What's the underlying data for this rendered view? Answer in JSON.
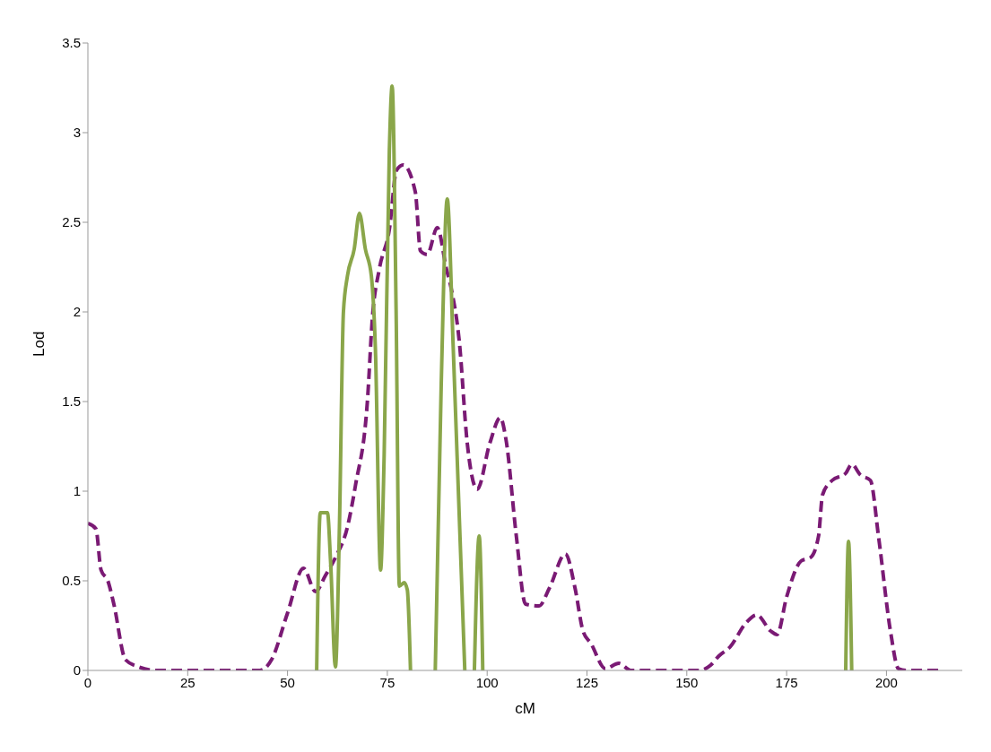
{
  "chart_data": {
    "type": "line",
    "xlabel": "cM",
    "ylabel": "Lod",
    "xlim": [
      0,
      219
    ],
    "xticks": [
      0,
      25,
      50,
      75,
      100,
      125,
      150,
      175,
      200
    ],
    "ylim": [
      0,
      3.5
    ],
    "yticks": [
      0,
      0.5,
      1,
      1.5,
      2,
      2.5,
      3,
      3.5
    ],
    "grid": false,
    "legend": false,
    "marker": "none",
    "series": [
      {
        "color": "#7a1a74",
        "line_style": "dashed",
        "x": [
          0,
          2,
          3.3,
          5,
          6.5,
          9.4,
          12.7,
          17,
          43,
          46,
          50,
          54,
          57,
          59.5,
          62,
          65,
          67,
          70,
          71.3,
          73,
          75.5,
          77.3,
          79,
          82,
          83.3,
          85,
          87.5,
          89.8,
          91,
          93,
          95,
          97.5,
          100.7,
          103.3,
          104.7,
          107.3,
          109.6,
          113,
          115.6,
          119.6,
          122,
          124,
          126,
          129.6,
          133,
          136,
          153,
          156,
          158,
          160.8,
          165,
          167.5,
          171,
          172.6,
          175,
          178.6,
          181,
          183,
          184,
          186.4,
          189.8,
          191.3,
          193.5,
          196,
          198,
          201,
          203,
          205.3,
          213
        ],
        "values": [
          0.82,
          0.79,
          0.56,
          0.5,
          0.37,
          0.06,
          0.02,
          0,
          0,
          0.06,
          0.32,
          0.57,
          0.44,
          0.53,
          0.63,
          0.8,
          1.03,
          1.5,
          1.98,
          2.24,
          2.46,
          2.79,
          2.82,
          2.67,
          2.34,
          2.32,
          2.47,
          2.24,
          2.13,
          1.84,
          1.27,
          1.01,
          1.27,
          1.41,
          1.29,
          0.75,
          0.37,
          0.36,
          0.46,
          0.65,
          0.46,
          0.22,
          0.15,
          0.01,
          0.04,
          0,
          0,
          0.03,
          0.08,
          0.13,
          0.27,
          0.31,
          0.22,
          0.2,
          0.41,
          0.61,
          0.63,
          0.75,
          0.98,
          1.06,
          1.1,
          1.15,
          1.09,
          1.06,
          0.75,
          0.22,
          0.01,
          0,
          0
        ]
      },
      {
        "color": "#8aa64a",
        "line_style": "solid",
        "x": [
          57.3,
          58.2,
          60,
          60.8,
          62,
          63,
          64,
          65,
          66.7,
          68,
          69.5,
          71,
          72,
          73.3,
          74.2,
          75.5,
          76.2,
          77.2,
          78,
          79.2,
          80,
          80.8,
          84,
          87,
          88.5,
          90,
          91.5,
          94.4,
          95.5,
          96.8,
          98,
          98.9,
          150,
          189.8,
          190.5,
          191.3
        ],
        "values": [
          0,
          0.88,
          0.88,
          0.6,
          0.02,
          0.8,
          2.0,
          2.2,
          2.35,
          2.55,
          2.35,
          2.2,
          1.8,
          0.56,
          1.2,
          2.9,
          3.26,
          2.0,
          0.47,
          0.49,
          0.45,
          0,
          null,
          0,
          1.6,
          2.63,
          1.8,
          0,
          null,
          0,
          0.75,
          0,
          null,
          0,
          0.72,
          0
        ]
      }
    ]
  }
}
